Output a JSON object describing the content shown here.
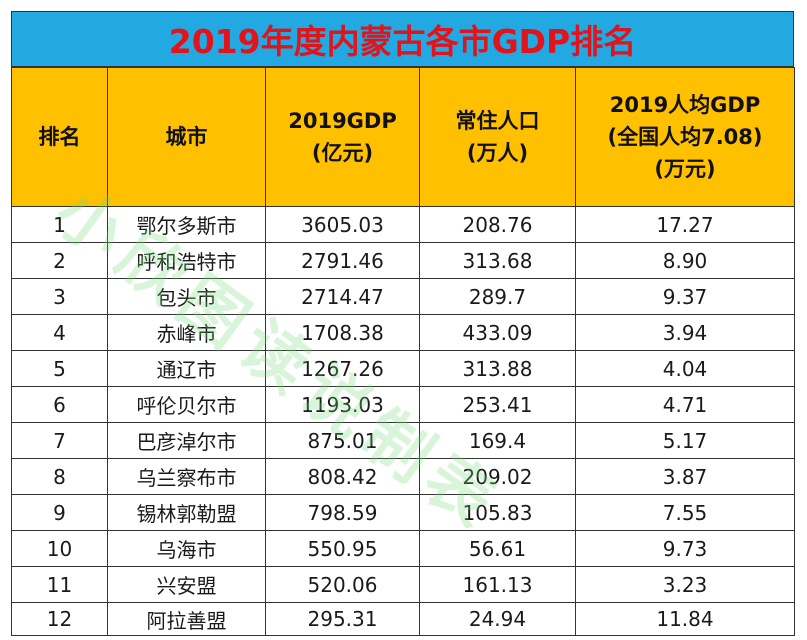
{
  "title": "2019年度内蒙古各市GDP排名",
  "headers": {
    "rank": [
      "排名"
    ],
    "city": [
      "城市"
    ],
    "gdp": [
      "2019GDP",
      "(亿元)"
    ],
    "population": [
      "常住人口",
      "(万人)"
    ],
    "per_capita": [
      "2019人均GDP",
      "(全国人均7.08)",
      "(万元)"
    ]
  },
  "rows": [
    {
      "rank": "1",
      "city": "鄂尔多斯市",
      "gdp": "3605.03",
      "population": "208.76",
      "per_capita": "17.27"
    },
    {
      "rank": "2",
      "city": "呼和浩特市",
      "gdp": "2791.46",
      "population": "313.68",
      "per_capita": "8.90"
    },
    {
      "rank": "3",
      "city": "包头市",
      "gdp": "2714.47",
      "population": "289.7",
      "per_capita": "9.37"
    },
    {
      "rank": "4",
      "city": "赤峰市",
      "gdp": "1708.38",
      "population": "433.09",
      "per_capita": "3.94"
    },
    {
      "rank": "5",
      "city": "通辽市",
      "gdp": "1267.26",
      "population": "313.88",
      "per_capita": "4.04"
    },
    {
      "rank": "6",
      "city": "呼伦贝尔市",
      "gdp": "1193.03",
      "population": "253.41",
      "per_capita": "4.71"
    },
    {
      "rank": "7",
      "city": "巴彦淖尔市",
      "gdp": "875.01",
      "population": "169.4",
      "per_capita": "5.17"
    },
    {
      "rank": "8",
      "city": "乌兰察布市",
      "gdp": "808.42",
      "population": "209.02",
      "per_capita": "3.87"
    },
    {
      "rank": "9",
      "city": "锡林郭勒盟",
      "gdp": "798.59",
      "population": "105.83",
      "per_capita": "7.55"
    },
    {
      "rank": "10",
      "city": "乌海市",
      "gdp": "550.95",
      "population": "56.61",
      "per_capita": "9.73"
    },
    {
      "rank": "11",
      "city": "兴安盟",
      "gdp": "520.06",
      "population": "161.13",
      "per_capita": "3.23"
    },
    {
      "rank": "12",
      "city": "阿拉善盟",
      "gdp": "295.31",
      "population": "24.94",
      "per_capita": "11.84"
    }
  ],
  "watermark": "小欣图读说制表",
  "colors": {
    "title_bg": "#23a9e1",
    "title_text": "#e0141a",
    "header_bg": "#ffc000",
    "watermark": "#78dc78"
  }
}
